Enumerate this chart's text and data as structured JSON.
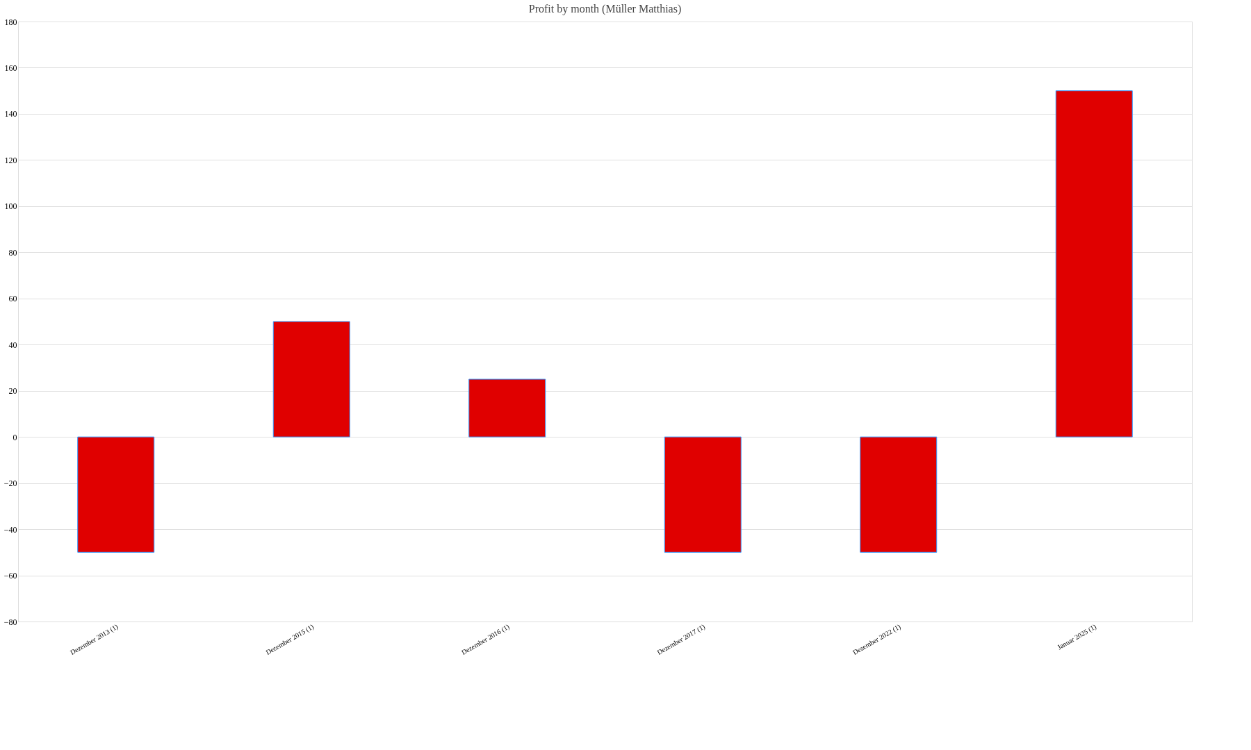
{
  "chart_data": {
    "type": "bar",
    "title": "Profit by month  (Müller Matthias)",
    "categories": [
      "Dezember 2013 (1)",
      "Dezember 2015 (1)",
      "Dezember 2016 (1)",
      "Dezember 2017 (1)",
      "Dezember 2022 (1)",
      "Januar 2025 (1)"
    ],
    "values": [
      -50,
      50,
      25,
      -50,
      -50,
      150
    ],
    "color": "#e00000",
    "ylim": [
      -80,
      180
    ],
    "yticks": [
      -80,
      -60,
      -40,
      -20,
      0,
      20,
      40,
      60,
      80,
      100,
      120,
      140,
      160,
      180
    ],
    "grid": "y"
  }
}
